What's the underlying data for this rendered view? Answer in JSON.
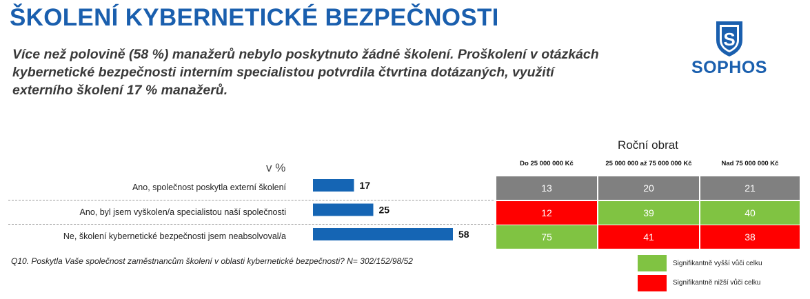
{
  "title": "ŠKOLENÍ KYBERNETICKÉ BEZPEČNOSTI",
  "subtitle": "Více než polovině (58 %) manažerů nebylo poskytnuto žádné školení. Proškolení v otázkách kybernetické bezpečnosti interním specialistou potvrdila čtvrtina dotázaných, využití externího školení 17 % manažerů.",
  "logo": {
    "letter": "S",
    "text": "SOPHOS",
    "color": "#1a5fae"
  },
  "unit_label": "v %",
  "section_header": "Roční obrat",
  "question": "Q10. Poskytla Vaše společnost zaměstnancům školení v oblasti kybernetické bezpečnosti? N= 302/152/98/52",
  "legend": [
    {
      "color": "#80c342",
      "label": "Signifikantně vyšší vůči celku"
    },
    {
      "color": "#ff0000",
      "label": "Signifikantně nižší vůči celku"
    }
  ],
  "colors": {
    "bar": "#1565b4",
    "neutral": "#808080",
    "higher": "#80c342",
    "lower": "#ff0000"
  },
  "chart_data": {
    "type": "bar",
    "orientation": "horizontal",
    "categories": [
      "Ano, společnost poskytla externí školení",
      "Ano, byl jsem vyškolen/a specialistou naší společnosti",
      "Ne, školení kybernetické bezpečnosti jsem neabsolvoval/a"
    ],
    "values": [
      17,
      25,
      58
    ],
    "xlim": [
      0,
      100
    ],
    "grid": false,
    "table": {
      "header": "Roční obrat",
      "columns": [
        "Do 25 000 000 Kč",
        "25 000 000 až 75 000 000 Kč",
        "Nad 75 000 000 Kč"
      ],
      "rows": [
        {
          "values": [
            13,
            20,
            21
          ],
          "status": [
            "neutral",
            "neutral",
            "neutral"
          ]
        },
        {
          "values": [
            12,
            39,
            40
          ],
          "status": [
            "lower",
            "higher",
            "higher"
          ]
        },
        {
          "values": [
            75,
            41,
            38
          ],
          "status": [
            "higher",
            "lower",
            "lower"
          ]
        }
      ]
    }
  }
}
